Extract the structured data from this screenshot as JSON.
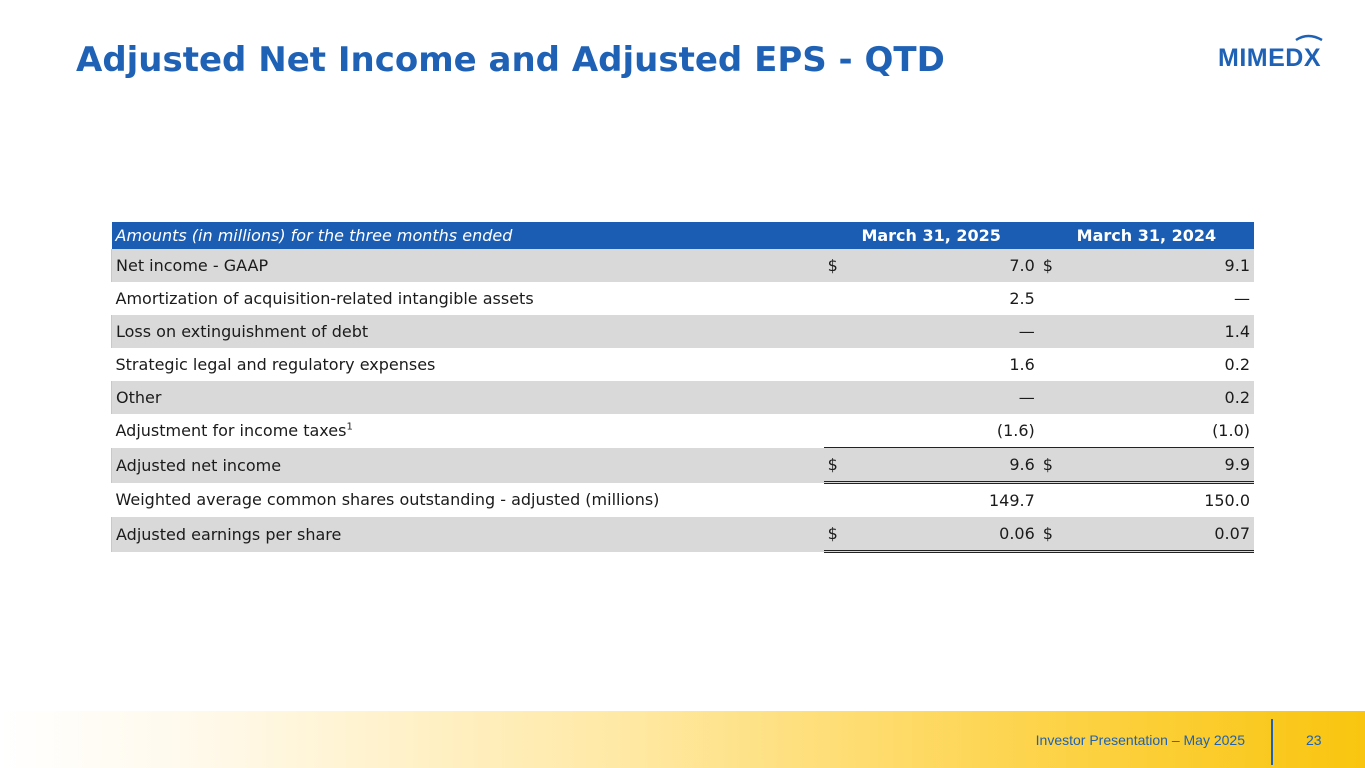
{
  "title": "Adjusted Net Income and Adjusted EPS - QTD",
  "logo": {
    "text": "MIMEDX"
  },
  "table": {
    "header": {
      "label": "Amounts (in millions) for the three months ended",
      "col1": "March 31, 2025",
      "col2": "March 31, 2024"
    },
    "rows": [
      {
        "label": "Net income - GAAP",
        "d1": "$",
        "v1": "7.0",
        "d2": "$",
        "v2": "9.1"
      },
      {
        "label": "Amortization of acquisition-related intangible assets",
        "d1": "",
        "v1": "2.5",
        "d2": "",
        "v2": "—"
      },
      {
        "label": "Loss on extinguishment of debt",
        "d1": "",
        "v1": "—",
        "d2": "",
        "v2": "1.4"
      },
      {
        "label": "Strategic legal and regulatory expenses",
        "d1": "",
        "v1": "1.6",
        "d2": "",
        "v2": "0.2"
      },
      {
        "label": "Other",
        "d1": "",
        "v1": "—",
        "d2": "",
        "v2": "0.2"
      },
      {
        "label": "Adjustment for income taxes",
        "sup": "1",
        "d1": "",
        "v1": "(1.6)",
        "d2": "",
        "v2": "(1.0)"
      },
      {
        "label": "Adjusted net income",
        "d1": "$",
        "v1": "9.6",
        "d2": "$",
        "v2": "9.9"
      },
      {
        "label": "Weighted average common shares outstanding - adjusted (millions)",
        "d1": "",
        "v1": "149.7",
        "d2": "",
        "v2": "150.0"
      },
      {
        "label": "Adjusted earnings per share",
        "d1": "$",
        "v1": "0.06",
        "d2": "$",
        "v2": "0.07"
      }
    ]
  },
  "footer": {
    "text": "Investor Presentation – May 2025",
    "page": "23"
  },
  "colors": {
    "brand_blue": "#1f62b5",
    "header_blue": "#1a5db3",
    "shade_gray": "#d9d9d9",
    "footer_yellow": "#f9c50f"
  }
}
